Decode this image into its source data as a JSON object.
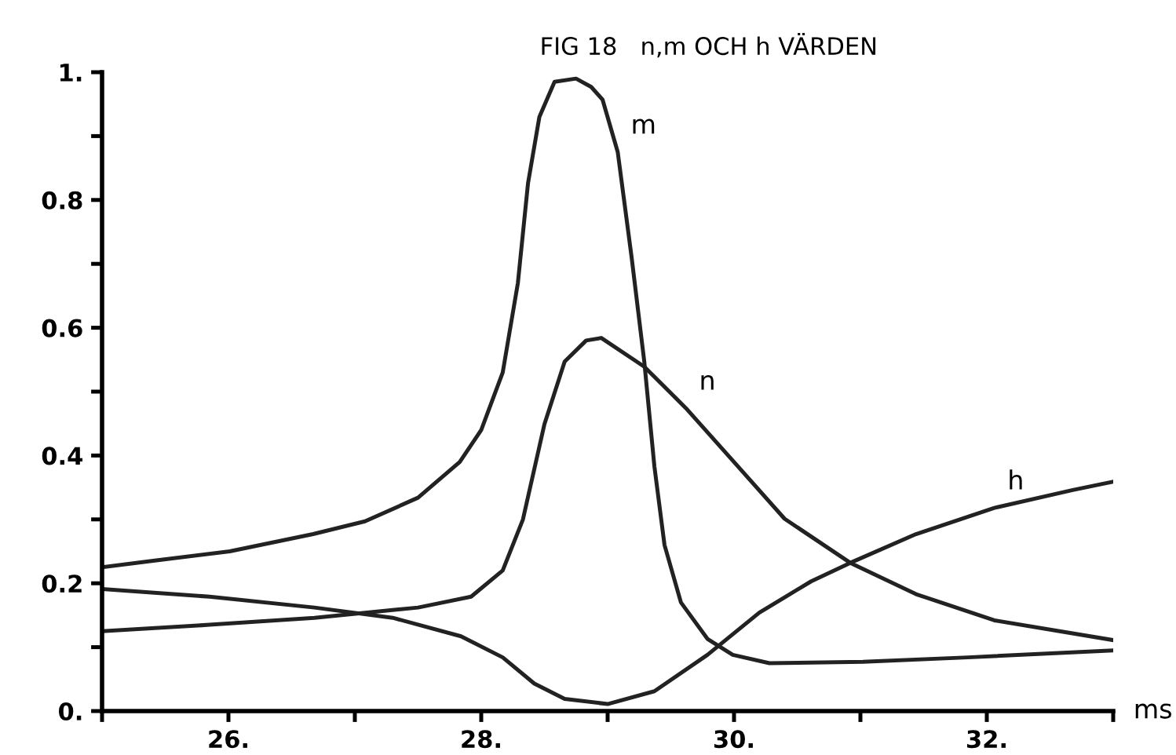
{
  "chart_data": {
    "type": "line",
    "title": "FIG 18   n,m OCH h VÄRDEN",
    "xlabel": "ms",
    "xlim": [
      25,
      33
    ],
    "ylim": [
      0,
      1
    ],
    "xticks": [
      {
        "value": 25,
        "label": null
      },
      {
        "value": 26,
        "label": "26."
      },
      {
        "value": 27,
        "label": null
      },
      {
        "value": 28,
        "label": "28."
      },
      {
        "value": 29,
        "label": null
      },
      {
        "value": 30,
        "label": "30."
      },
      {
        "value": 31,
        "label": null
      },
      {
        "value": 32,
        "label": "32."
      },
      {
        "value": 33,
        "label": null
      }
    ],
    "yticks": [
      {
        "value": 0,
        "label": "0."
      },
      {
        "value": 0.1,
        "label": null
      },
      {
        "value": 0.2,
        "label": "0.2"
      },
      {
        "value": 0.3,
        "label": null
      },
      {
        "value": 0.4,
        "label": "0.4"
      },
      {
        "value": 0.5,
        "label": null
      },
      {
        "value": 0.6,
        "label": "0.6"
      },
      {
        "value": 0.7,
        "label": null
      },
      {
        "value": 0.8,
        "label": "0.8"
      },
      {
        "value": 0.9,
        "label": null
      },
      {
        "value": 1,
        "label": "1."
      }
    ],
    "grid": false,
    "legend": false,
    "marker": "none",
    "line_style": "solid",
    "series": [
      {
        "name": "m",
        "color": "#222222",
        "x": [
          25.0,
          25.43,
          26.01,
          26.67,
          27.08,
          27.5,
          27.83,
          28.0,
          28.17,
          28.29,
          28.37,
          28.46,
          28.58,
          28.75,
          28.87,
          28.96,
          29.08,
          29.19,
          29.29,
          29.37,
          29.45,
          29.58,
          29.79,
          29.99,
          30.28,
          31.02,
          31.85,
          33.0
        ],
        "values": [
          0.225,
          0.236,
          0.25,
          0.277,
          0.297,
          0.334,
          0.39,
          0.44,
          0.53,
          0.67,
          0.826,
          0.93,
          0.985,
          0.99,
          0.977,
          0.957,
          0.875,
          0.71,
          0.547,
          0.383,
          0.26,
          0.17,
          0.113,
          0.088,
          0.075,
          0.077,
          0.084,
          0.095
        ]
      },
      {
        "name": "n",
        "color": "#222222",
        "x": [
          25.0,
          25.85,
          26.68,
          27.5,
          27.92,
          28.17,
          28.33,
          28.5,
          28.66,
          28.83,
          28.95,
          29.29,
          29.62,
          29.99,
          30.4,
          30.92,
          31.44,
          32.06,
          33.0
        ],
        "values": [
          0.125,
          0.135,
          0.146,
          0.162,
          0.179,
          0.22,
          0.3,
          0.449,
          0.547,
          0.58,
          0.584,
          0.539,
          0.474,
          0.392,
          0.301,
          0.232,
          0.183,
          0.142,
          0.111
        ]
      },
      {
        "name": "h",
        "color": "#222222",
        "x": [
          25.0,
          25.85,
          26.68,
          27.3,
          27.84,
          28.17,
          28.42,
          28.66,
          29.0,
          29.37,
          29.79,
          30.2,
          30.61,
          30.92,
          31.44,
          32.06,
          32.68,
          33.0
        ],
        "values": [
          0.191,
          0.179,
          0.162,
          0.146,
          0.117,
          0.084,
          0.043,
          0.019,
          0.011,
          0.031,
          0.088,
          0.154,
          0.203,
          0.232,
          0.277,
          0.318,
          0.346,
          0.359
        ]
      }
    ]
  }
}
